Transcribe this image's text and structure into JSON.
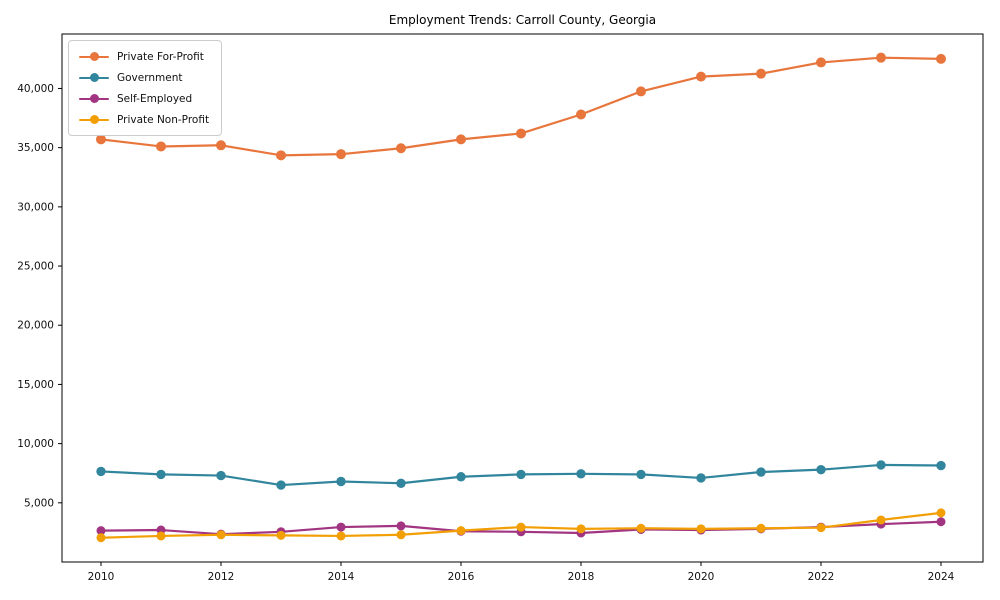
{
  "chart_data": {
    "type": "line",
    "title": "Employment Trends: Carroll County, Georgia",
    "xlabel": "",
    "ylabel": "",
    "grid": false,
    "legend_position": "upper-left",
    "xlim": [
      2009.35,
      2024.7
    ],
    "ylim": [
      0,
      44600
    ],
    "x": [
      2010,
      2011,
      2012,
      2013,
      2014,
      2015,
      2016,
      2017,
      2018,
      2019,
      2020,
      2021,
      2022,
      2023,
      2024
    ],
    "x_ticks": [
      {
        "value": 2010,
        "label": "2010"
      },
      {
        "value": 2012,
        "label": "2012"
      },
      {
        "value": 2014,
        "label": "2014"
      },
      {
        "value": 2016,
        "label": "2016"
      },
      {
        "value": 2018,
        "label": "2018"
      },
      {
        "value": 2020,
        "label": "2020"
      },
      {
        "value": 2022,
        "label": "2022"
      },
      {
        "value": 2024,
        "label": "2024"
      }
    ],
    "y_ticks": [
      {
        "value": 5000,
        "label": "5,000"
      },
      {
        "value": 10000,
        "label": "10,000"
      },
      {
        "value": 15000,
        "label": "15,000"
      },
      {
        "value": 20000,
        "label": "20,000"
      },
      {
        "value": 25000,
        "label": "25,000"
      },
      {
        "value": 30000,
        "label": "30,000"
      },
      {
        "value": 35000,
        "label": "35,000"
      },
      {
        "value": 40000,
        "label": "40,000"
      }
    ],
    "series": [
      {
        "name": "Private For-Profit",
        "color": "#E8763C",
        "values": [
          35700,
          35100,
          35200,
          34350,
          34450,
          34950,
          35700,
          36200,
          37800,
          39750,
          41000,
          41250,
          42200,
          42600,
          42500
        ]
      },
      {
        "name": "Government",
        "color": "#31859C",
        "values": [
          7650,
          7400,
          7300,
          6500,
          6800,
          6650,
          7200,
          7400,
          7450,
          7400,
          7100,
          7600,
          7800,
          8200,
          8150
        ]
      },
      {
        "name": "Self-Employed",
        "color": "#A23582",
        "values": [
          2650,
          2700,
          2350,
          2550,
          2950,
          3050,
          2600,
          2550,
          2450,
          2750,
          2700,
          2800,
          2950,
          3200,
          3400
        ]
      },
      {
        "name": "Private Non-Profit",
        "color": "#F29F05",
        "values": [
          2050,
          2200,
          2300,
          2250,
          2200,
          2300,
          2650,
          2950,
          2800,
          2850,
          2800,
          2850,
          2900,
          3550,
          4150
        ]
      }
    ]
  }
}
